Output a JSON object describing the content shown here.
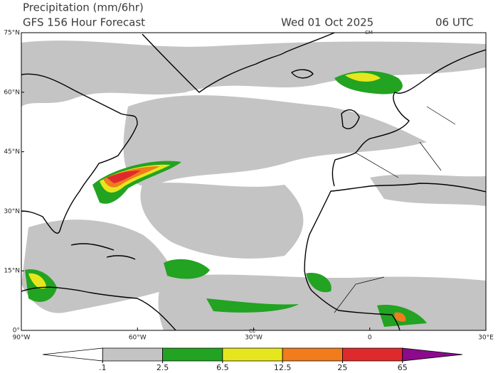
{
  "header": {
    "title": "Precipitation (mm/6hr)",
    "subtitle": "GFS 156 Hour Forecast",
    "valid_date": "Wed 01 Oct 2025",
    "valid_hour": "06 UTC"
  },
  "map": {
    "lat_labels": [
      "75°N",
      "60°N",
      "45°N",
      "30°N",
      "15°N",
      "0°"
    ],
    "lon_labels": [
      "90°W",
      "60°W",
      "30°W",
      "0",
      "30°E"
    ],
    "place_labels": [
      "CM",
      "CE"
    ]
  },
  "legend": {
    "colors": [
      "#ffffff",
      "#c4c4c4",
      "#22a322",
      "#e6e61e",
      "#f07c1e",
      "#df2a2d",
      "#8c0a8c"
    ],
    "ticks": [
      {
        "value": 0.1,
        "label": ".1"
      },
      2.5,
      6.5,
      12.5,
      25,
      65
    ]
  }
}
